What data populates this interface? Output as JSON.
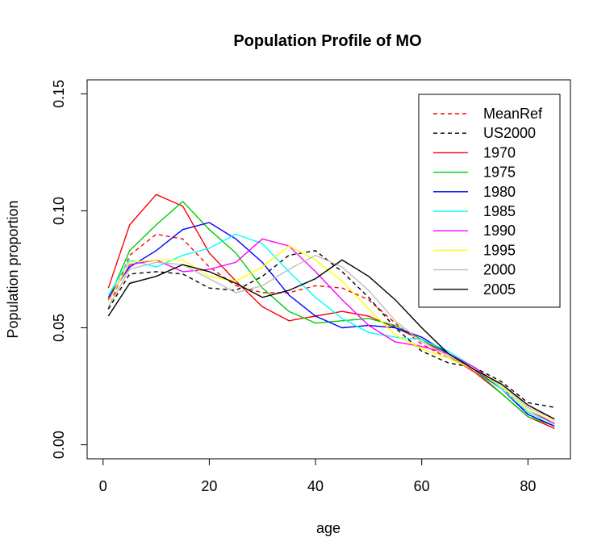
{
  "chart_data": {
    "type": "line",
    "title": "Population Profile of MO",
    "xlabel": "age",
    "ylabel": "Population proportion",
    "xlim": [
      -3,
      88
    ],
    "ylim": [
      -0.006,
      0.156
    ],
    "xticks": [
      0,
      20,
      40,
      60,
      80
    ],
    "xtick_labels": [
      "0",
      "20",
      "40",
      "60",
      "80"
    ],
    "yticks": [
      0.0,
      0.05,
      0.1,
      0.15
    ],
    "ytick_labels": [
      "0.00",
      "0.05",
      "0.10",
      "0.15"
    ],
    "legend_position": "top-right",
    "grid": false,
    "x": [
      1,
      5,
      10,
      15,
      20,
      25,
      30,
      35,
      40,
      45,
      50,
      55,
      60,
      65,
      70,
      75,
      80,
      85
    ],
    "series": [
      {
        "name": "MeanRef",
        "color": "#ff0000",
        "dash": "dashed",
        "values": [
          0.058,
          0.081,
          0.09,
          0.088,
          0.076,
          0.068,
          0.065,
          0.065,
          0.068,
          0.067,
          0.062,
          0.052,
          0.043,
          0.037,
          0.032,
          0.025,
          0.013,
          0.008
        ]
      },
      {
        "name": "US2000",
        "color": "#000000",
        "dash": "dashed",
        "values": [
          0.058,
          0.073,
          0.074,
          0.073,
          0.067,
          0.066,
          0.072,
          0.081,
          0.083,
          0.074,
          0.063,
          0.05,
          0.04,
          0.035,
          0.033,
          0.027,
          0.018,
          0.016
        ]
      },
      {
        "name": "1970",
        "color": "#ff0000",
        "dash": "solid",
        "values": [
          0.067,
          0.094,
          0.107,
          0.102,
          0.082,
          0.07,
          0.059,
          0.053,
          0.055,
          0.057,
          0.055,
          0.05,
          0.045,
          0.038,
          0.031,
          0.022,
          0.012,
          0.007
        ]
      },
      {
        "name": "1975",
        "color": "#00cd00",
        "dash": "solid",
        "values": [
          0.062,
          0.083,
          0.094,
          0.104,
          0.092,
          0.082,
          0.067,
          0.057,
          0.052,
          0.053,
          0.054,
          0.051,
          0.045,
          0.039,
          0.032,
          0.022,
          0.012,
          0.008
        ]
      },
      {
        "name": "1980",
        "color": "#0000ff",
        "dash": "solid",
        "values": [
          0.063,
          0.076,
          0.083,
          0.092,
          0.095,
          0.088,
          0.078,
          0.064,
          0.055,
          0.05,
          0.051,
          0.05,
          0.046,
          0.039,
          0.032,
          0.024,
          0.013,
          0.008
        ]
      },
      {
        "name": "1985",
        "color": "#00ffff",
        "dash": "solid",
        "values": [
          0.064,
          0.079,
          0.076,
          0.081,
          0.084,
          0.09,
          0.086,
          0.074,
          0.063,
          0.054,
          0.048,
          0.046,
          0.045,
          0.04,
          0.033,
          0.024,
          0.014,
          0.009
        ]
      },
      {
        "name": "1990",
        "color": "#ff00ff",
        "dash": "solid",
        "values": [
          0.062,
          0.077,
          0.079,
          0.074,
          0.075,
          0.078,
          0.088,
          0.085,
          0.074,
          0.062,
          0.051,
          0.044,
          0.042,
          0.039,
          0.033,
          0.025,
          0.015,
          0.009
        ]
      },
      {
        "name": "1995",
        "color": "#ffff00",
        "dash": "solid",
        "values": [
          0.061,
          0.078,
          0.079,
          0.079,
          0.072,
          0.07,
          0.076,
          0.085,
          0.079,
          0.07,
          0.058,
          0.047,
          0.041,
          0.037,
          0.032,
          0.025,
          0.015,
          0.01
        ]
      },
      {
        "name": "2000",
        "color": "#bebebe",
        "dash": "solid",
        "values": [
          0.059,
          0.075,
          0.078,
          0.077,
          0.071,
          0.065,
          0.068,
          0.075,
          0.081,
          0.076,
          0.066,
          0.053,
          0.044,
          0.038,
          0.032,
          0.026,
          0.016,
          0.011
        ]
      },
      {
        "name": "2005",
        "color": "#000000",
        "dash": "solid",
        "values": [
          0.055,
          0.069,
          0.072,
          0.077,
          0.074,
          0.069,
          0.063,
          0.066,
          0.071,
          0.079,
          0.072,
          0.062,
          0.05,
          0.039,
          0.032,
          0.026,
          0.017,
          0.011
        ]
      }
    ]
  }
}
